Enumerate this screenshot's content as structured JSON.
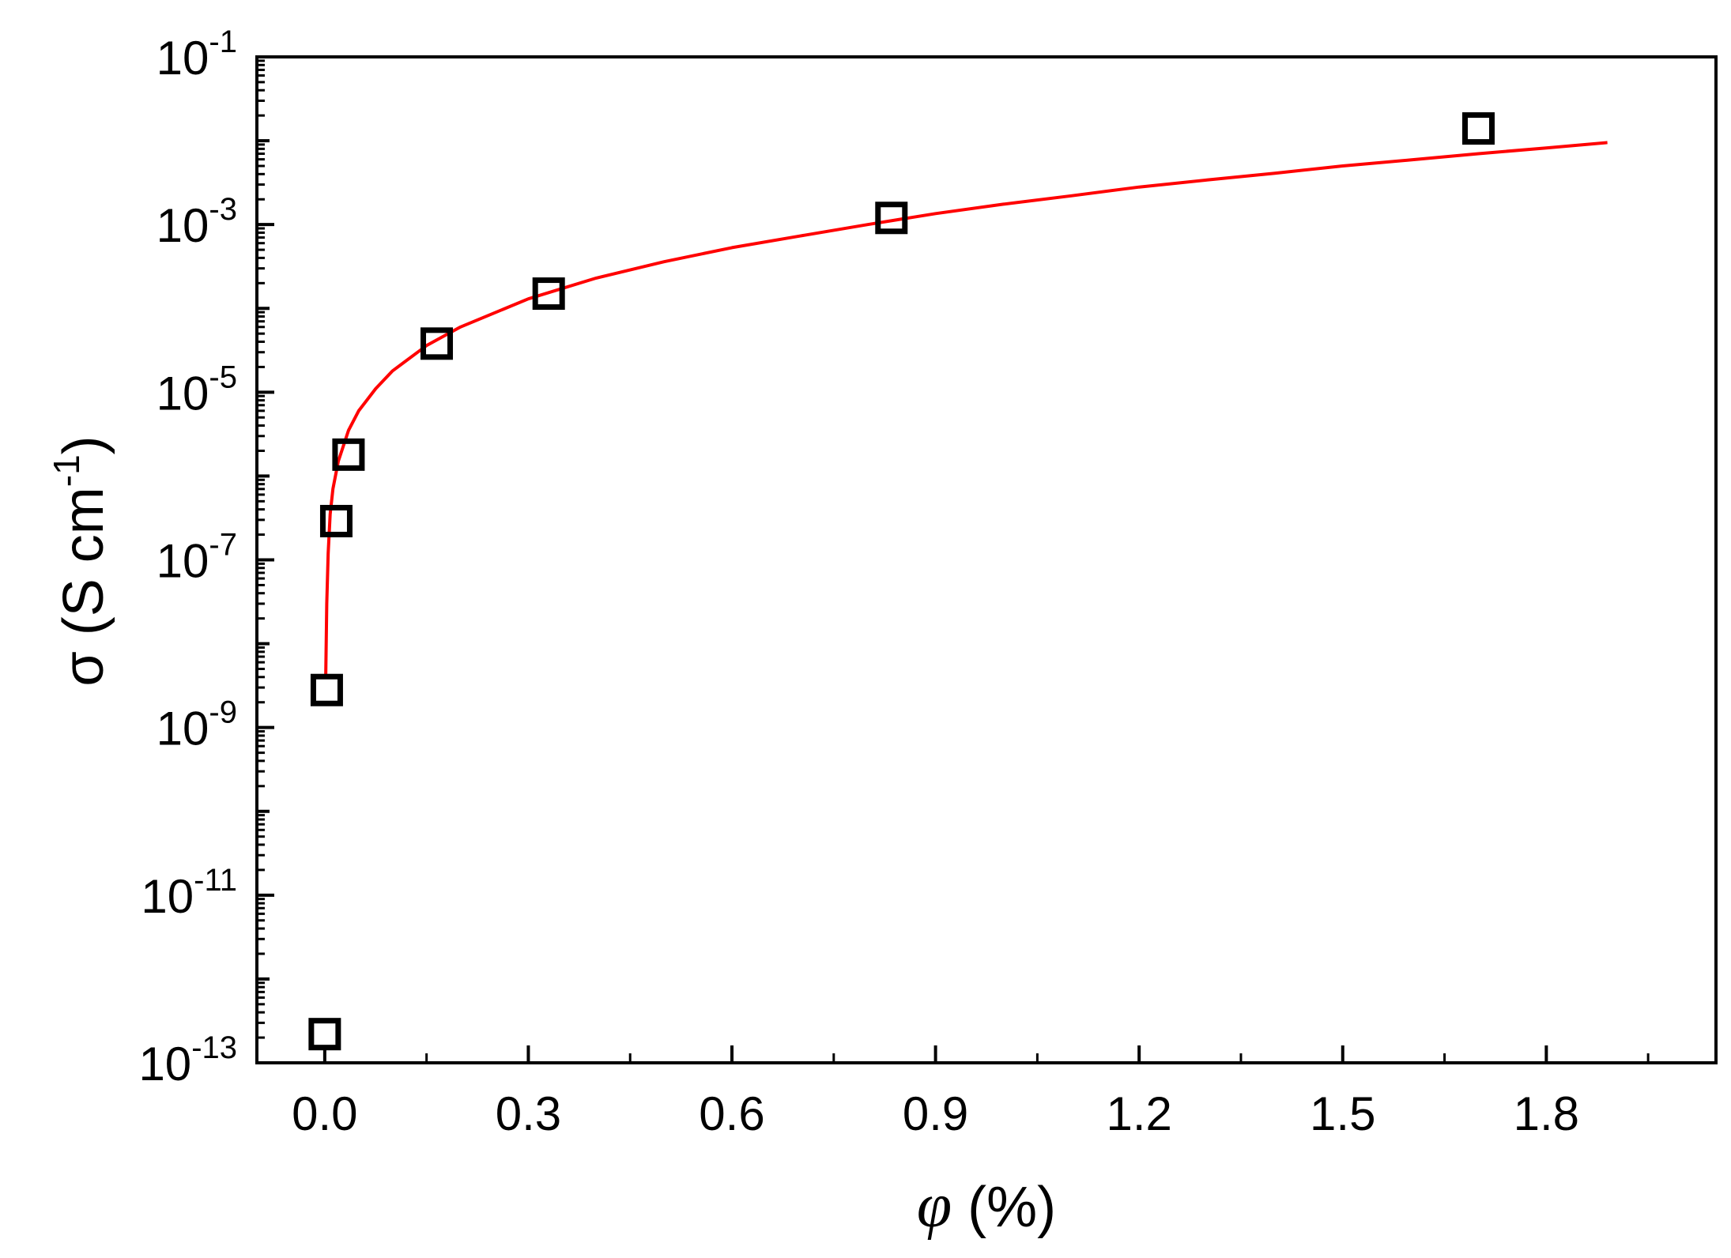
{
  "chart_data": {
    "type": "scatter",
    "xlabel": "φ (%)",
    "ylabel": "σ (S cm-1)",
    "xlabel_parts": {
      "symbol": "φ",
      "rest": " (%)"
    },
    "ylabel_parts": {
      "symbol": "σ",
      "rest": " (S cm",
      "sup": "-1",
      "close": ")"
    },
    "xlim": [
      -0.1,
      2.05
    ],
    "ylim_log10": [
      -13,
      -1
    ],
    "y_scale": "log",
    "grid": false,
    "x_ticks": [
      "0.0",
      "0.3",
      "0.6",
      "0.9",
      "1.2",
      "1.5",
      "1.8"
    ],
    "x_tick_values": [
      0.0,
      0.3,
      0.6,
      0.9,
      1.2,
      1.5,
      1.8
    ],
    "y_ticks": [
      {
        "base": "10",
        "exp": "-1",
        "value": 0.1
      },
      {
        "base": "10",
        "exp": "-3",
        "value": 0.001
      },
      {
        "base": "10",
        "exp": "-5",
        "value": 1e-05
      },
      {
        "base": "10",
        "exp": "-7",
        "value": 1e-07
      },
      {
        "base": "10",
        "exp": "-9",
        "value": 1e-09
      },
      {
        "base": "10",
        "exp": "-11",
        "value": 1e-11
      },
      {
        "base": "10",
        "exp": "-13",
        "value": 1e-13
      }
    ],
    "series": [
      {
        "kind": "scatter",
        "marker": "open-square",
        "color": "#000000",
        "points": [
          {
            "x": 0.0,
            "y": 2.2e-13
          },
          {
            "x": 0.003,
            "y": 2.8e-09
          },
          {
            "x": 0.017,
            "y": 2.9e-07
          },
          {
            "x": 0.035,
            "y": 1.8e-06
          },
          {
            "x": 0.165,
            "y": 3.8e-05
          },
          {
            "x": 0.33,
            "y": 0.00015
          },
          {
            "x": 0.835,
            "y": 0.0012
          },
          {
            "x": 1.7,
            "y": 0.014
          }
        ]
      },
      {
        "kind": "line",
        "color": "#ff0000",
        "points": [
          {
            "x": 0.0015,
            "y": 4e-09
          },
          {
            "x": 0.003,
            "y": 3e-08
          },
          {
            "x": 0.005,
            "y": 1.2e-07
          },
          {
            "x": 0.008,
            "y": 3.5e-07
          },
          {
            "x": 0.012,
            "y": 7e-07
          },
          {
            "x": 0.02,
            "y": 1.5e-06
          },
          {
            "x": 0.035,
            "y": 3.5e-06
          },
          {
            "x": 0.05,
            "y": 6e-06
          },
          {
            "x": 0.075,
            "y": 1.1e-05
          },
          {
            "x": 0.1,
            "y": 1.8e-05
          },
          {
            "x": 0.15,
            "y": 3.6e-05
          },
          {
            "x": 0.2,
            "y": 6e-05
          },
          {
            "x": 0.3,
            "y": 0.00013
          },
          {
            "x": 0.4,
            "y": 0.00023
          },
          {
            "x": 0.5,
            "y": 0.00036
          },
          {
            "x": 0.6,
            "y": 0.00053
          },
          {
            "x": 0.7,
            "y": 0.00073
          },
          {
            "x": 0.8,
            "y": 0.001
          },
          {
            "x": 0.9,
            "y": 0.00135
          },
          {
            "x": 1.0,
            "y": 0.00175
          },
          {
            "x": 1.1,
            "y": 0.0022
          },
          {
            "x": 1.2,
            "y": 0.0028
          },
          {
            "x": 1.3,
            "y": 0.0034
          },
          {
            "x": 1.4,
            "y": 0.0041
          },
          {
            "x": 1.5,
            "y": 0.005
          },
          {
            "x": 1.6,
            "y": 0.0059
          },
          {
            "x": 1.7,
            "y": 0.007
          },
          {
            "x": 1.8,
            "y": 0.0082
          },
          {
            "x": 1.89,
            "y": 0.0095
          }
        ]
      }
    ]
  }
}
